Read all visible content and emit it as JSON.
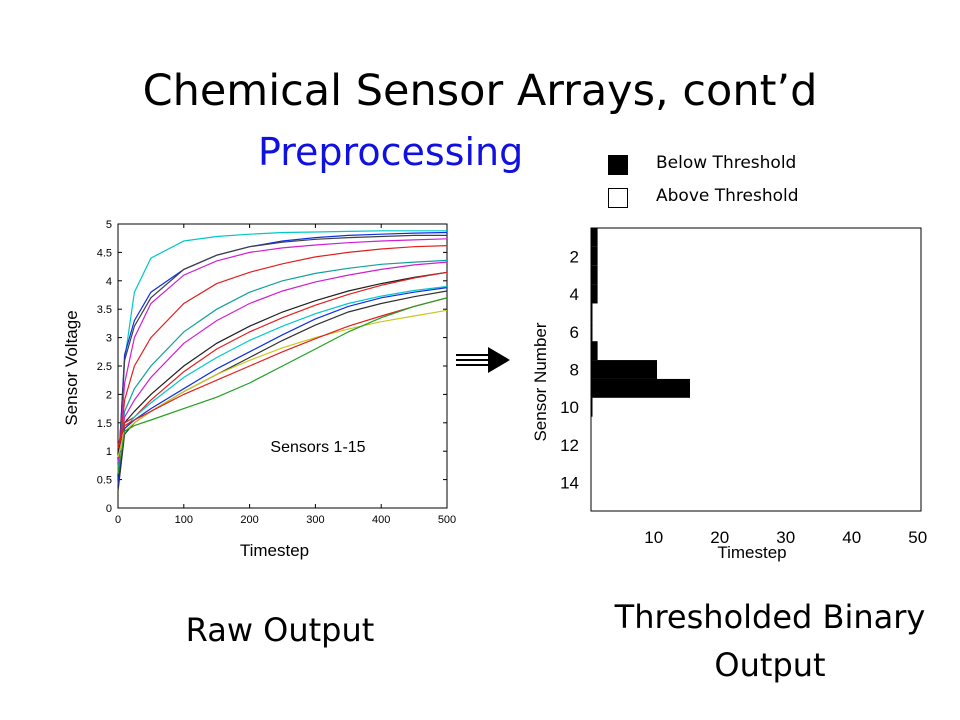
{
  "slide": {
    "title": "Chemical Sensor Arrays, cont’d",
    "subtitle": "Preprocessing",
    "legend": {
      "below": "Below Threshold",
      "above": "Above Threshold",
      "below_color": "#000000",
      "above_color": "#ffffff"
    },
    "left_caption": "Raw Output",
    "right_caption_line1": "Thresholded Binary",
    "right_caption_line2": "Output"
  },
  "chart_data": [
    {
      "type": "line",
      "xlabel": "Timestep",
      "ylabel": "Sensor Voltage",
      "annotation": "Sensors 1-15",
      "xlim": [
        0,
        500
      ],
      "ylim": [
        0,
        5
      ],
      "xticks": [
        "0",
        "100",
        "200",
        "300",
        "400",
        "500"
      ],
      "yticks": [
        "0",
        "0.5",
        "1",
        "1.5",
        "2",
        "2.5",
        "3",
        "3.5",
        "4",
        "4.5",
        "5"
      ],
      "x": [
        0,
        10,
        25,
        50,
        100,
        150,
        200,
        250,
        300,
        350,
        400,
        450,
        500
      ],
      "series": [
        {
          "color": "#00c8c8",
          "values": [
            0.6,
            2.6,
            3.8,
            4.4,
            4.7,
            4.78,
            4.82,
            4.85,
            4.86,
            4.87,
            4.88,
            4.88,
            4.88
          ]
        },
        {
          "color": "#1030e0",
          "values": [
            0.6,
            2.7,
            3.3,
            3.8,
            4.2,
            4.45,
            4.6,
            4.7,
            4.76,
            4.8,
            4.82,
            4.84,
            4.85
          ]
        },
        {
          "color": "#404040",
          "values": [
            0.6,
            2.6,
            3.2,
            3.7,
            4.2,
            4.45,
            4.6,
            4.68,
            4.73,
            4.76,
            4.78,
            4.8,
            4.8
          ]
        },
        {
          "color": "#d020d0",
          "values": [
            0.6,
            2.2,
            3.0,
            3.6,
            4.1,
            4.35,
            4.5,
            4.58,
            4.63,
            4.67,
            4.7,
            4.72,
            4.74
          ]
        },
        {
          "color": "#e02020",
          "values": [
            0.7,
            1.9,
            2.5,
            3.0,
            3.6,
            3.95,
            4.15,
            4.3,
            4.42,
            4.5,
            4.56,
            4.6,
            4.62
          ]
        },
        {
          "color": "#10a0a0",
          "values": [
            0.7,
            1.7,
            2.1,
            2.5,
            3.1,
            3.5,
            3.8,
            4.0,
            4.13,
            4.22,
            4.29,
            4.33,
            4.36
          ]
        },
        {
          "color": "#d020d0",
          "values": [
            0.8,
            1.6,
            1.9,
            2.3,
            2.9,
            3.3,
            3.6,
            3.82,
            3.98,
            4.1,
            4.2,
            4.28,
            4.33
          ]
        },
        {
          "color": "#202020",
          "values": [
            1.0,
            1.5,
            1.7,
            2.0,
            2.5,
            2.9,
            3.2,
            3.45,
            3.65,
            3.82,
            3.95,
            4.06,
            4.15
          ]
        },
        {
          "color": "#e02020",
          "values": [
            1.1,
            1.5,
            1.6,
            1.9,
            2.4,
            2.8,
            3.1,
            3.35,
            3.57,
            3.76,
            3.92,
            4.05,
            4.15
          ]
        },
        {
          "color": "#00c8c8",
          "values": [
            0.4,
            1.4,
            1.6,
            1.85,
            2.3,
            2.65,
            2.95,
            3.2,
            3.42,
            3.6,
            3.73,
            3.83,
            3.9
          ]
        },
        {
          "color": "#1030e0",
          "values": [
            0.4,
            1.4,
            1.55,
            1.75,
            2.1,
            2.45,
            2.75,
            3.05,
            3.33,
            3.55,
            3.7,
            3.8,
            3.88
          ]
        },
        {
          "color": "#303030",
          "values": [
            0.3,
            1.3,
            1.5,
            1.7,
            2.05,
            2.35,
            2.65,
            2.95,
            3.22,
            3.45,
            3.6,
            3.72,
            3.82
          ]
        },
        {
          "color": "#c8c820",
          "values": [
            0.9,
            1.35,
            1.5,
            1.7,
            2.05,
            2.35,
            2.6,
            2.82,
            3.0,
            3.15,
            3.28,
            3.38,
            3.48
          ]
        },
        {
          "color": "#e02020",
          "values": [
            1.05,
            1.45,
            1.55,
            1.7,
            2.0,
            2.25,
            2.5,
            2.75,
            2.98,
            3.2,
            3.38,
            3.55,
            3.7
          ]
        },
        {
          "color": "#20a020",
          "values": [
            0.6,
            1.35,
            1.45,
            1.55,
            1.75,
            1.95,
            2.2,
            2.5,
            2.8,
            3.1,
            3.35,
            3.55,
            3.7
          ]
        }
      ]
    },
    {
      "type": "heatmap",
      "xlabel": "Timestep",
      "ylabel": "Sensor Number",
      "xlim": [
        0.5,
        50.5
      ],
      "ylim": [
        0.5,
        15.5
      ],
      "xticks": [
        "10",
        "20",
        "30",
        "40",
        "50"
      ],
      "yticks": [
        "2",
        "4",
        "6",
        "8",
        "10",
        "12",
        "14"
      ],
      "rows": [
        {
          "sensor": 1,
          "below_threshold_until": 1.5
        },
        {
          "sensor": 2,
          "below_threshold_until": 1.5
        },
        {
          "sensor": 3,
          "below_threshold_until": 1.5
        },
        {
          "sensor": 4,
          "below_threshold_until": 1.5
        },
        {
          "sensor": 5,
          "below_threshold_until": 0.5
        },
        {
          "sensor": 6,
          "below_threshold_until": 0.5
        },
        {
          "sensor": 7,
          "below_threshold_until": 1.5
        },
        {
          "sensor": 8,
          "below_threshold_until": 10.5
        },
        {
          "sensor": 9,
          "below_threshold_until": 15.5
        },
        {
          "sensor": 10,
          "below_threshold_until": 0.5
        },
        {
          "sensor": 11,
          "below_threshold_until": 0
        },
        {
          "sensor": 12,
          "below_threshold_until": 0
        },
        {
          "sensor": 13,
          "below_threshold_until": 0
        },
        {
          "sensor": 14,
          "below_threshold_until": 0
        },
        {
          "sensor": 15,
          "below_threshold_until": 0
        }
      ]
    }
  ]
}
